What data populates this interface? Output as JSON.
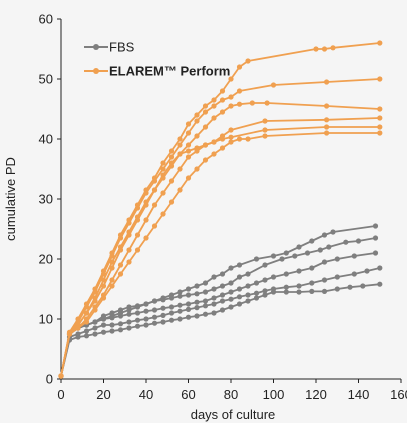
{
  "chart_data": {
    "type": "line",
    "title": "",
    "xlabel": "days of culture",
    "ylabel": "cumulative PD",
    "xlim": [
      0,
      160
    ],
    "ylim": [
      0,
      60
    ],
    "x_ticks": [
      "0",
      "20",
      "40",
      "60",
      "80",
      "100",
      "120",
      "140",
      "160"
    ],
    "y_ticks": [
      "0",
      "10",
      "20",
      "30",
      "40",
      "50",
      "60"
    ],
    "grid": false,
    "legend_position": "top-left",
    "legend": [
      {
        "name": "FBS",
        "color": "#7f7f7f"
      },
      {
        "name": "ELAREM™ Perform",
        "color": "#f0a050"
      }
    ],
    "series": [
      {
        "group": "ELAREM™ Perform",
        "color": "#f0a050",
        "points": [
          [
            0,
            0.5
          ],
          [
            4,
            7.8
          ],
          [
            8,
            10
          ],
          [
            12,
            12.5
          ],
          [
            16,
            15
          ],
          [
            20,
            18
          ],
          [
            24,
            21
          ],
          [
            28,
            24
          ],
          [
            32,
            26.5
          ],
          [
            36,
            29
          ],
          [
            40,
            31.5
          ],
          [
            44,
            33.5
          ],
          [
            48,
            36
          ],
          [
            52,
            38
          ],
          [
            56,
            40
          ],
          [
            60,
            42.5
          ],
          [
            64,
            44
          ],
          [
            68,
            45.5
          ],
          [
            72,
            46.5
          ],
          [
            76,
            48
          ],
          [
            80,
            50
          ],
          [
            84,
            52
          ],
          [
            88,
            53
          ],
          [
            120,
            55
          ],
          [
            124,
            55
          ],
          [
            128,
            55.2
          ],
          [
            150,
            56
          ]
        ]
      },
      {
        "group": "ELAREM™ Perform",
        "color": "#f0a050",
        "points": [
          [
            0,
            0.5
          ],
          [
            4,
            7.5
          ],
          [
            8,
            9.5
          ],
          [
            12,
            12
          ],
          [
            16,
            14.5
          ],
          [
            20,
            17.5
          ],
          [
            24,
            20.5
          ],
          [
            28,
            23.5
          ],
          [
            32,
            26
          ],
          [
            36,
            28.5
          ],
          [
            40,
            31
          ],
          [
            44,
            33
          ],
          [
            48,
            35
          ],
          [
            52,
            37
          ],
          [
            56,
            39
          ],
          [
            60,
            41
          ],
          [
            64,
            43
          ],
          [
            68,
            44.5
          ],
          [
            72,
            45.5
          ],
          [
            76,
            46.5
          ],
          [
            80,
            47
          ],
          [
            84,
            48
          ],
          [
            100,
            49
          ],
          [
            125,
            49.5
          ],
          [
            150,
            50
          ]
        ]
      },
      {
        "group": "ELAREM™ Perform",
        "color": "#f0a050",
        "points": [
          [
            0,
            0.5
          ],
          [
            4,
            7.5
          ],
          [
            8,
            9
          ],
          [
            12,
            11
          ],
          [
            16,
            13.5
          ],
          [
            20,
            16.5
          ],
          [
            24,
            19.5
          ],
          [
            28,
            22
          ],
          [
            32,
            24.5
          ],
          [
            36,
            27
          ],
          [
            40,
            29.5
          ],
          [
            44,
            31.5
          ],
          [
            48,
            33.5
          ],
          [
            52,
            35.5
          ],
          [
            56,
            37.5
          ],
          [
            60,
            39
          ],
          [
            64,
            40.5
          ],
          [
            68,
            42
          ],
          [
            72,
            43.5
          ],
          [
            76,
            44.5
          ],
          [
            80,
            45.5
          ],
          [
            84,
            45.8
          ],
          [
            90,
            46
          ],
          [
            97,
            46
          ],
          [
            125,
            45.5
          ],
          [
            150,
            45
          ]
        ]
      },
      {
        "group": "ELAREM™ Perform",
        "color": "#f0a050",
        "points": [
          [
            0,
            0.5
          ],
          [
            4,
            7.5
          ],
          [
            8,
            9
          ],
          [
            12,
            11
          ],
          [
            16,
            13
          ],
          [
            20,
            15.5
          ],
          [
            24,
            18.5
          ],
          [
            28,
            21.5
          ],
          [
            32,
            24
          ],
          [
            36,
            26.5
          ],
          [
            40,
            29
          ],
          [
            44,
            31.5
          ],
          [
            48,
            34
          ],
          [
            52,
            36
          ],
          [
            56,
            37.5
          ],
          [
            60,
            38
          ],
          [
            64,
            38.5
          ],
          [
            68,
            39
          ],
          [
            72,
            39.5
          ],
          [
            76,
            40.5
          ],
          [
            80,
            41.5
          ],
          [
            96,
            43
          ],
          [
            125,
            43.2
          ],
          [
            150,
            43.5
          ]
        ]
      },
      {
        "group": "ELAREM™ Perform",
        "color": "#f0a050",
        "points": [
          [
            0,
            0.5
          ],
          [
            4,
            7.5
          ],
          [
            8,
            8.5
          ],
          [
            12,
            10
          ],
          [
            16,
            12
          ],
          [
            20,
            14
          ],
          [
            24,
            16.5
          ],
          [
            28,
            19
          ],
          [
            32,
            21.5
          ],
          [
            36,
            24
          ],
          [
            40,
            26.5
          ],
          [
            44,
            29
          ],
          [
            48,
            31
          ],
          [
            52,
            33
          ],
          [
            56,
            35
          ],
          [
            60,
            37
          ],
          [
            64,
            38
          ],
          [
            68,
            39
          ],
          [
            72,
            39.5
          ],
          [
            76,
            40
          ],
          [
            80,
            40.3
          ],
          [
            96,
            41.5
          ],
          [
            125,
            42
          ],
          [
            150,
            42
          ]
        ]
      },
      {
        "group": "ELAREM™ Perform",
        "color": "#f0a050",
        "points": [
          [
            0,
            0.5
          ],
          [
            4,
            7.5
          ],
          [
            8,
            8.5
          ],
          [
            12,
            9.5
          ],
          [
            16,
            11.5
          ],
          [
            20,
            13.5
          ],
          [
            24,
            15.5
          ],
          [
            28,
            17.5
          ],
          [
            32,
            19.5
          ],
          [
            36,
            21.5
          ],
          [
            40,
            23.5
          ],
          [
            44,
            25.5
          ],
          [
            48,
            27.5
          ],
          [
            52,
            29.5
          ],
          [
            56,
            31.5
          ],
          [
            60,
            33.5
          ],
          [
            64,
            35
          ],
          [
            68,
            36.5
          ],
          [
            72,
            37.5
          ],
          [
            76,
            38.5
          ],
          [
            80,
            39.5
          ],
          [
            84,
            40
          ],
          [
            88,
            40
          ],
          [
            96,
            40.5
          ],
          [
            125,
            41
          ],
          [
            150,
            41
          ]
        ]
      },
      {
        "group": "FBS",
        "color": "#7f7f7f",
        "points": [
          [
            0,
            0.5
          ],
          [
            4,
            7.5
          ],
          [
            8,
            8.5
          ],
          [
            12,
            9
          ],
          [
            16,
            9.5
          ],
          [
            20,
            10
          ],
          [
            24,
            10.5
          ],
          [
            28,
            11
          ],
          [
            32,
            11.5
          ],
          [
            36,
            12
          ],
          [
            40,
            12.5
          ],
          [
            44,
            13
          ],
          [
            48,
            13.5
          ],
          [
            52,
            14
          ],
          [
            56,
            14.5
          ],
          [
            60,
            15
          ],
          [
            64,
            15.5
          ],
          [
            68,
            16
          ],
          [
            72,
            17
          ],
          [
            76,
            17.5
          ],
          [
            80,
            18.5
          ],
          [
            84,
            19
          ],
          [
            92,
            20
          ],
          [
            100,
            20.5
          ],
          [
            106,
            21
          ],
          [
            112,
            22
          ],
          [
            118,
            23
          ],
          [
            124,
            24
          ],
          [
            128,
            24.5
          ],
          [
            148,
            25.5
          ]
        ]
      },
      {
        "group": "FBS",
        "color": "#7f7f7f",
        "points": [
          [
            0,
            0.5
          ],
          [
            4,
            7.5
          ],
          [
            8,
            8.5
          ],
          [
            12,
            9
          ],
          [
            16,
            9.5
          ],
          [
            20,
            10.5
          ],
          [
            24,
            11
          ],
          [
            28,
            11.5
          ],
          [
            32,
            12
          ],
          [
            36,
            12.2
          ],
          [
            40,
            12.5
          ],
          [
            44,
            13
          ],
          [
            48,
            13.2
          ],
          [
            52,
            13.5
          ],
          [
            56,
            13.8
          ],
          [
            60,
            14
          ],
          [
            64,
            14.2
          ],
          [
            68,
            14.5
          ],
          [
            72,
            15
          ],
          [
            76,
            15.5
          ],
          [
            80,
            16
          ],
          [
            84,
            17
          ],
          [
            88,
            17.5
          ],
          [
            96,
            19
          ],
          [
            104,
            20
          ],
          [
            110,
            20.5
          ],
          [
            116,
            21
          ],
          [
            122,
            21.5
          ],
          [
            126,
            22
          ],
          [
            134,
            22.8
          ],
          [
            140,
            23
          ],
          [
            148,
            23.5
          ]
        ]
      },
      {
        "group": "FBS",
        "color": "#7f7f7f",
        "points": [
          [
            0,
            0.5
          ],
          [
            4,
            7.5
          ],
          [
            8,
            8.5
          ],
          [
            12,
            9
          ],
          [
            16,
            9.5
          ],
          [
            20,
            10
          ],
          [
            24,
            10.2
          ],
          [
            28,
            10.5
          ],
          [
            32,
            10.8
          ],
          [
            36,
            11
          ],
          [
            40,
            11.3
          ],
          [
            44,
            11.5
          ],
          [
            48,
            11.8
          ],
          [
            52,
            12
          ],
          [
            56,
            12.3
          ],
          [
            60,
            12.5
          ],
          [
            64,
            12.8
          ],
          [
            68,
            13
          ],
          [
            72,
            13.5
          ],
          [
            76,
            14
          ],
          [
            80,
            14.5
          ],
          [
            84,
            15
          ],
          [
            88,
            15.5
          ],
          [
            92,
            16
          ],
          [
            96,
            16.5
          ],
          [
            100,
            17
          ],
          [
            106,
            17.5
          ],
          [
            112,
            18
          ],
          [
            118,
            18.5
          ],
          [
            124,
            19.5
          ],
          [
            130,
            20
          ],
          [
            138,
            20.5
          ],
          [
            148,
            21
          ]
        ]
      },
      {
        "group": "FBS",
        "color": "#7f7f7f",
        "points": [
          [
            0,
            0.5
          ],
          [
            4,
            7
          ],
          [
            8,
            7.5
          ],
          [
            12,
            8
          ],
          [
            16,
            8.5
          ],
          [
            20,
            9
          ],
          [
            24,
            9
          ],
          [
            28,
            9.2
          ],
          [
            32,
            9.5
          ],
          [
            36,
            9.8
          ],
          [
            40,
            10
          ],
          [
            44,
            10.3
          ],
          [
            48,
            10.6
          ],
          [
            52,
            11
          ],
          [
            56,
            11.3
          ],
          [
            60,
            11.6
          ],
          [
            64,
            11.9
          ],
          [
            68,
            12.2
          ],
          [
            72,
            12.5
          ],
          [
            76,
            13
          ],
          [
            80,
            13.3
          ],
          [
            84,
            13.7
          ],
          [
            88,
            14
          ],
          [
            92,
            14.3
          ],
          [
            96,
            14.7
          ],
          [
            100,
            15
          ],
          [
            106,
            15.3
          ],
          [
            112,
            15.5
          ],
          [
            118,
            16
          ],
          [
            124,
            16.5
          ],
          [
            130,
            17
          ],
          [
            138,
            17.5
          ],
          [
            144,
            18
          ],
          [
            150,
            18.5
          ]
        ]
      },
      {
        "group": "FBS",
        "color": "#7f7f7f",
        "points": [
          [
            0,
            0.5
          ],
          [
            4,
            6.5
          ],
          [
            8,
            7
          ],
          [
            12,
            7.2
          ],
          [
            16,
            7.5
          ],
          [
            20,
            7.8
          ],
          [
            24,
            8
          ],
          [
            28,
            8.2
          ],
          [
            32,
            8.5
          ],
          [
            36,
            8.8
          ],
          [
            40,
            9
          ],
          [
            44,
            9.3
          ],
          [
            48,
            9.5
          ],
          [
            52,
            9.8
          ],
          [
            56,
            10
          ],
          [
            60,
            10.3
          ],
          [
            64,
            10.5
          ],
          [
            68,
            10.8
          ],
          [
            72,
            11
          ],
          [
            76,
            11.5
          ],
          [
            80,
            12
          ],
          [
            84,
            12.5
          ],
          [
            88,
            13
          ],
          [
            92,
            13.5
          ],
          [
            96,
            14
          ],
          [
            100,
            14.5
          ],
          [
            106,
            14.5
          ],
          [
            112,
            14.5
          ],
          [
            118,
            14.6
          ],
          [
            124,
            14.6
          ],
          [
            130,
            15
          ],
          [
            136,
            15.3
          ],
          [
            142,
            15.5
          ],
          [
            150,
            15.8
          ]
        ]
      }
    ]
  }
}
